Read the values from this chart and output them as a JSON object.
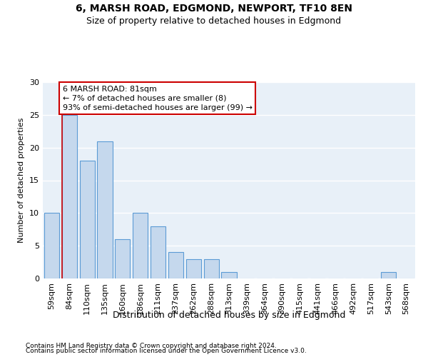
{
  "title": "6, MARSH ROAD, EDGMOND, NEWPORT, TF10 8EN",
  "subtitle": "Size of property relative to detached houses in Edgmond",
  "xlabel": "Distribution of detached houses by size in Edgmond",
  "ylabel": "Number of detached properties",
  "categories": [
    "59sqm",
    "84sqm",
    "110sqm",
    "135sqm",
    "160sqm",
    "186sqm",
    "211sqm",
    "237sqm",
    "262sqm",
    "288sqm",
    "313sqm",
    "339sqm",
    "364sqm",
    "390sqm",
    "415sqm",
    "441sqm",
    "466sqm",
    "492sqm",
    "517sqm",
    "543sqm",
    "568sqm"
  ],
  "values": [
    10,
    25,
    18,
    21,
    6,
    10,
    8,
    4,
    3,
    3,
    1,
    0,
    0,
    0,
    0,
    0,
    0,
    0,
    0,
    1,
    0
  ],
  "bar_color": "#c5d8ed",
  "bar_edge_color": "#5b9bd5",
  "annotation_line0": "6 MARSH ROAD: 81sqm",
  "annotation_line1": "← 7% of detached houses are smaller (8)",
  "annotation_line2": "93% of semi-detached houses are larger (99) →",
  "annotation_box_color": "#ffffff",
  "annotation_box_edge": "#cc0000",
  "vline_color": "#cc0000",
  "ylim": [
    0,
    30
  ],
  "yticks": [
    0,
    5,
    10,
    15,
    20,
    25,
    30
  ],
  "bg_color": "#e8f0f8",
  "footer1": "Contains HM Land Registry data © Crown copyright and database right 2024.",
  "footer2": "Contains public sector information licensed under the Open Government Licence v3.0.",
  "title_fontsize": 10,
  "subtitle_fontsize": 9,
  "bar_fontsize": 8,
  "ylabel_fontsize": 8,
  "xlabel_fontsize": 9,
  "footer_fontsize": 6.5,
  "annotation_fontsize": 8
}
